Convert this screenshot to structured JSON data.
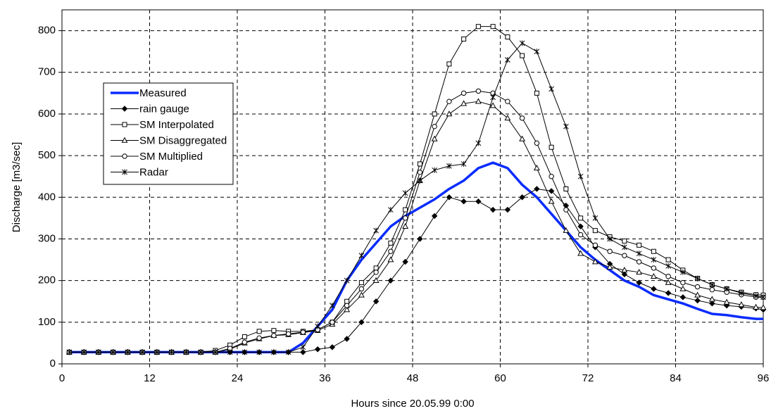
{
  "chart_data": {
    "type": "line",
    "xlabel": "Hours since 20.05.99 0:00",
    "ylabel": "Discharge [m3/sec]",
    "x": [
      1,
      3,
      5,
      7,
      9,
      11,
      13,
      15,
      17,
      19,
      21,
      23,
      25,
      27,
      29,
      31,
      33,
      35,
      37,
      39,
      41,
      43,
      45,
      47,
      49,
      51,
      53,
      55,
      57,
      59,
      61,
      63,
      65,
      67,
      69,
      71,
      73,
      75,
      77,
      79,
      81,
      83,
      85,
      87,
      89,
      91,
      93,
      95,
      96
    ],
    "xlim": [
      0,
      96
    ],
    "xticks": [
      0,
      12,
      24,
      36,
      48,
      60,
      72,
      84,
      96
    ],
    "ylim": [
      0,
      850
    ],
    "yticks": [
      0,
      100,
      200,
      300,
      400,
      500,
      600,
      700,
      800
    ],
    "grid": true,
    "legend": "upper left",
    "series": [
      {
        "name": "Measured",
        "color": "#0a2cff",
        "width": 3.5,
        "marker": "none",
        "values": [
          28,
          28,
          28,
          28,
          28,
          28,
          28,
          28,
          28,
          28,
          28,
          28,
          28,
          28,
          28,
          28,
          50,
          90,
          130,
          200,
          250,
          290,
          330,
          355,
          375,
          395,
          420,
          440,
          470,
          483,
          470,
          430,
          400,
          360,
          320,
          280,
          250,
          225,
          200,
          185,
          165,
          155,
          145,
          132,
          120,
          117,
          112,
          108,
          108
        ]
      },
      {
        "name": "rain gauge",
        "color": "#000000",
        "width": 1,
        "marker": "diamond",
        "values": [
          28,
          28,
          28,
          28,
          28,
          28,
          28,
          28,
          28,
          28,
          28,
          28,
          28,
          28,
          28,
          28,
          28,
          35,
          40,
          60,
          100,
          150,
          200,
          245,
          300,
          355,
          400,
          390,
          390,
          370,
          370,
          400,
          420,
          415,
          380,
          330,
          280,
          240,
          215,
          195,
          180,
          170,
          160,
          152,
          145,
          140,
          137,
          133,
          130
        ]
      },
      {
        "name": "SM Interpolated",
        "color": "#000000",
        "width": 1,
        "marker": "square",
        "values": [
          28,
          28,
          28,
          28,
          28,
          28,
          28,
          28,
          28,
          28,
          32,
          45,
          65,
          78,
          80,
          78,
          78,
          82,
          100,
          150,
          195,
          230,
          290,
          370,
          480,
          600,
          720,
          780,
          810,
          810,
          785,
          740,
          650,
          520,
          420,
          350,
          320,
          305,
          295,
          285,
          270,
          250,
          225,
          205,
          190,
          180,
          172,
          166,
          165
        ]
      },
      {
        "name": "SM Disaggregated",
        "color": "#000000",
        "width": 1,
        "marker": "triangle",
        "values": [
          28,
          28,
          28,
          28,
          28,
          28,
          28,
          28,
          28,
          28,
          28,
          35,
          50,
          60,
          68,
          70,
          75,
          80,
          95,
          130,
          165,
          200,
          250,
          330,
          440,
          540,
          600,
          625,
          630,
          620,
          590,
          540,
          470,
          390,
          320,
          265,
          245,
          232,
          225,
          220,
          210,
          195,
          180,
          165,
          155,
          148,
          142,
          136,
          135
        ]
      },
      {
        "name": "SM Multiplied",
        "color": "#000000",
        "width": 1,
        "marker": "circle",
        "values": [
          28,
          28,
          28,
          28,
          28,
          28,
          28,
          28,
          28,
          28,
          28,
          37,
          52,
          62,
          68,
          72,
          76,
          82,
          100,
          140,
          180,
          220,
          270,
          350,
          460,
          570,
          630,
          650,
          655,
          650,
          630,
          590,
          530,
          450,
          370,
          310,
          285,
          270,
          260,
          245,
          230,
          210,
          195,
          185,
          178,
          172,
          166,
          160,
          160
        ]
      },
      {
        "name": "Radar",
        "color": "#000000",
        "width": 1,
        "marker": "star",
        "values": [
          28,
          28,
          28,
          28,
          28,
          28,
          28,
          28,
          28,
          28,
          28,
          28,
          28,
          28,
          28,
          28,
          40,
          90,
          140,
          200,
          260,
          320,
          370,
          410,
          440,
          465,
          475,
          480,
          530,
          640,
          730,
          770,
          750,
          660,
          570,
          450,
          350,
          300,
          280,
          265,
          250,
          235,
          220,
          205,
          190,
          180,
          170,
          163,
          160
        ]
      }
    ]
  }
}
